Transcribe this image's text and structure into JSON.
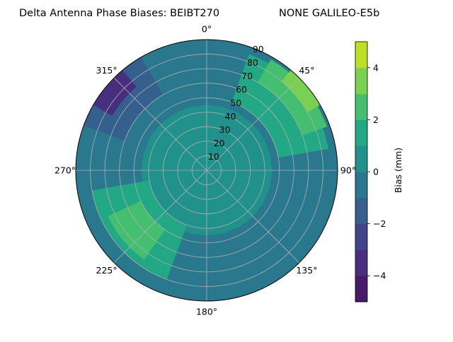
{
  "chart_data": {
    "type": "heatmap",
    "projection": "polar",
    "title_left": "Delta Antenna Phase Biases: BEIBT270",
    "title_right": "NONE GALILEO-E5b",
    "theta_zero": "top",
    "theta_direction": "clockwise",
    "theta_ticks": [
      {
        "deg": 0,
        "label": "0°"
      },
      {
        "deg": 45,
        "label": "45°"
      },
      {
        "deg": 90,
        "label": "90°"
      },
      {
        "deg": 135,
        "label": "135°"
      },
      {
        "deg": 180,
        "label": "180°"
      },
      {
        "deg": 225,
        "label": "225°"
      },
      {
        "deg": 270,
        "label": "270°"
      },
      {
        "deg": 315,
        "label": "315°"
      }
    ],
    "r_ticks": [
      {
        "value": 10,
        "label": "10"
      },
      {
        "value": 20,
        "label": "20"
      },
      {
        "value": 30,
        "label": "30"
      },
      {
        "value": 40,
        "label": "40"
      },
      {
        "value": 50,
        "label": "50"
      },
      {
        "value": 60,
        "label": "60"
      },
      {
        "value": 70,
        "label": "70"
      },
      {
        "value": 80,
        "label": "80"
      },
      {
        "value": 90,
        "label": "90"
      }
    ],
    "rlim": [
      0,
      90
    ],
    "grid": true,
    "colorbar": {
      "label": "Bias (mm)",
      "vmin": -5,
      "vmax": 5,
      "levels": [
        -5,
        -4,
        -3,
        -2,
        -1,
        0,
        1,
        2,
        3,
        4,
        5
      ],
      "ticks": [
        {
          "value": -4,
          "label": "−4"
        },
        {
          "value": -2,
          "label": "−2"
        },
        {
          "value": 0,
          "label": "0"
        },
        {
          "value": 2,
          "label": "2"
        },
        {
          "value": 4,
          "label": "4"
        }
      ],
      "colors": [
        "#481a6c",
        "#472f7d",
        "#414487",
        "#35608d",
        "#2a788e",
        "#21918c",
        "#22a884",
        "#44bf70",
        "#7ad151",
        "#bddf26",
        "#fde725"
      ]
    },
    "regions": [
      {
        "level": -1,
        "polygon": [
          [
            250,
            10
          ],
          [
            360,
            10
          ],
          [
            360,
            90
          ],
          [
            250,
            90
          ]
        ]
      },
      {
        "level": 0,
        "polygon": [
          [
            0,
            0
          ],
          [
            360,
            0
          ],
          [
            360,
            45
          ],
          [
            0,
            45
          ]
        ]
      },
      {
        "level": 1,
        "polygon": [
          [
            20,
            50
          ],
          [
            80,
            50
          ],
          [
            80,
            85
          ],
          [
            20,
            85
          ]
        ]
      },
      {
        "level": 2,
        "polygon": [
          [
            30,
            70
          ],
          [
            70,
            70
          ],
          [
            70,
            88
          ],
          [
            30,
            88
          ]
        ]
      },
      {
        "level": 3,
        "polygon": [
          [
            40,
            80
          ],
          [
            60,
            80
          ],
          [
            60,
            90
          ],
          [
            40,
            90
          ]
        ]
      },
      {
        "level": 1,
        "polygon": [
          [
            200,
            40
          ],
          [
            260,
            40
          ],
          [
            260,
            80
          ],
          [
            200,
            80
          ]
        ]
      },
      {
        "level": 2,
        "polygon": [
          [
            215,
            50
          ],
          [
            245,
            50
          ],
          [
            245,
            75
          ],
          [
            215,
            75
          ]
        ]
      },
      {
        "level": -2,
        "polygon": [
          [
            290,
            60
          ],
          [
            330,
            60
          ],
          [
            330,
            90
          ],
          [
            290,
            90
          ]
        ]
      },
      {
        "level": -4,
        "polygon": [
          [
            300,
            75
          ],
          [
            320,
            75
          ],
          [
            320,
            90
          ],
          [
            300,
            90
          ]
        ]
      }
    ]
  }
}
